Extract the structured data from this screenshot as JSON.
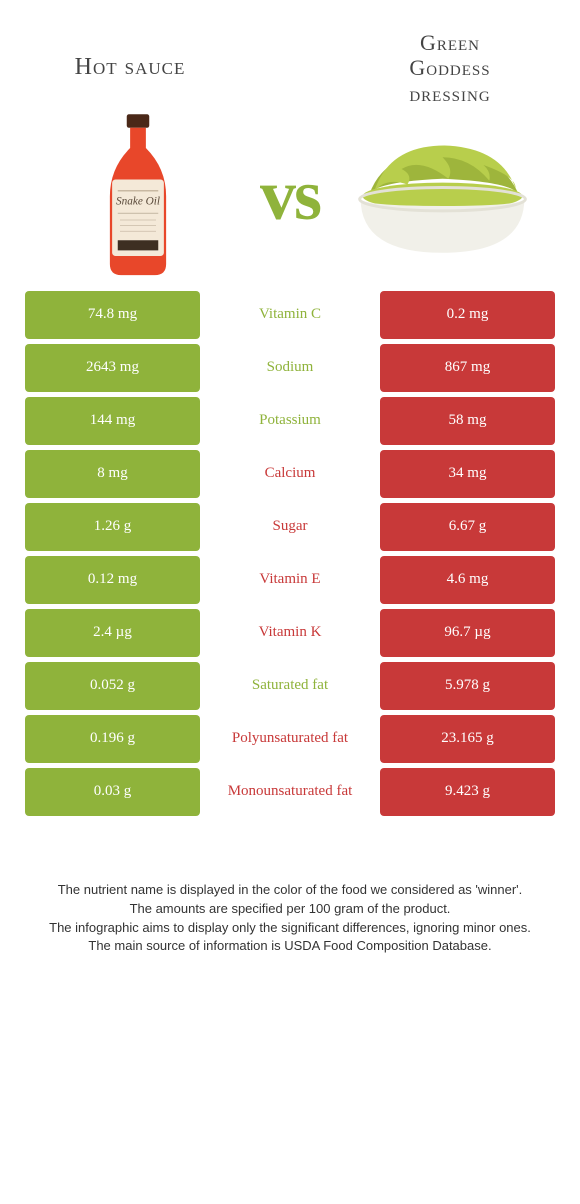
{
  "titles": {
    "left": "Hot sauce",
    "right_l1": "Green",
    "right_l2": "Goddess",
    "right_l3": "dressing"
  },
  "vs": "vs",
  "colors": {
    "green": "#8fb33b",
    "red": "#c83939",
    "bottle_body": "#e8472a",
    "bottle_cap": "#4a2818",
    "bottle_label": "#f4e9d8",
    "guac": "#b8ce4c",
    "guac_dark": "#9eb53c",
    "bowl": "#f1f0e9"
  },
  "rows": [
    {
      "left": "74.8 mg",
      "mid": "Vitamin C",
      "right": "0.2 mg",
      "winner": "left"
    },
    {
      "left": "2643 mg",
      "mid": "Sodium",
      "right": "867 mg",
      "winner": "left"
    },
    {
      "left": "144 mg",
      "mid": "Potassium",
      "right": "58 mg",
      "winner": "left"
    },
    {
      "left": "8 mg",
      "mid": "Calcium",
      "right": "34 mg",
      "winner": "right"
    },
    {
      "left": "1.26 g",
      "mid": "Sugar",
      "right": "6.67 g",
      "winner": "right"
    },
    {
      "left": "0.12 mg",
      "mid": "Vitamin E",
      "right": "4.6 mg",
      "winner": "right"
    },
    {
      "left": "2.4 µg",
      "mid": "Vitamin K",
      "right": "96.7 µg",
      "winner": "right"
    },
    {
      "left": "0.052 g",
      "mid": "Saturated fat",
      "right": "5.978 g",
      "winner": "left"
    },
    {
      "left": "0.196 g",
      "mid": "Polyunsaturated fat",
      "right": "23.165 g",
      "winner": "right"
    },
    {
      "left": "0.03 g",
      "mid": "Monounsaturated fat",
      "right": "9.423 g",
      "winner": "right"
    }
  ],
  "footer": [
    "The nutrient name is displayed in the color of the food we considered as 'winner'.",
    "The amounts are specified per 100 gram of the product.",
    "The infographic aims to display only the significant differences, ignoring minor ones.",
    "The main source of information is USDA Food Composition Database."
  ]
}
